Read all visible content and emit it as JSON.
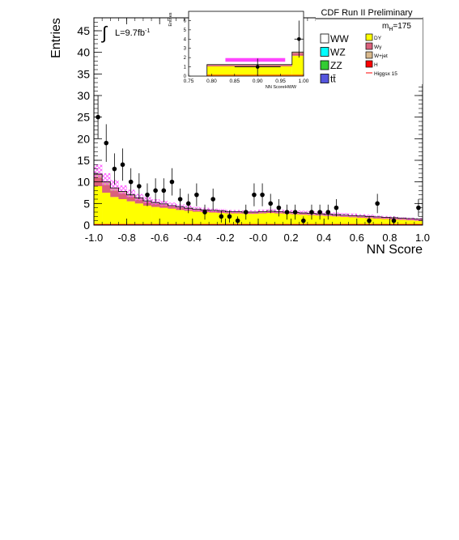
{
  "figure": {
    "experiment_label": "CDF Run II Preliminary",
    "luminosity_label": "L=9.7fb",
    "luminosity_superscript": "-1",
    "integral_symbol": "∫",
    "mass_label_prefix": "m",
    "mass_label_subscript": "H",
    "mass_label_value": "=175"
  },
  "colors": {
    "DY": "#ffff00",
    "Wgamma": "#d9617c",
    "Wjet": "#d9b98c",
    "H": "#ff0000",
    "HiggsLine": "#ff0000",
    "Higgs_band": "#ff44ff",
    "WW": "#ffffff",
    "WZ": "#00ffff",
    "ZZ": "#33cc33",
    "ttbar": "#5555dd",
    "data": "#000000"
  },
  "legend": {
    "left": [
      {
        "key": "WW",
        "label": "WW",
        "color_key": "WW"
      },
      {
        "key": "WZ",
        "label": "WZ",
        "color_key": "WZ"
      },
      {
        "key": "ZZ",
        "label": "ZZ",
        "color_key": "ZZ"
      },
      {
        "key": "ttbar",
        "label": "tt̄",
        "color_key": "ttbar"
      }
    ],
    "right": [
      {
        "key": "DY",
        "label": "DY",
        "color_key": "DY",
        "style": "box"
      },
      {
        "key": "Wgamma",
        "label": "Wγ",
        "color_key": "Wgamma",
        "style": "box"
      },
      {
        "key": "Wjet",
        "label": "W+jet",
        "color_key": "Wjet",
        "style": "box"
      },
      {
        "key": "H",
        "label": "H",
        "color_key": "H",
        "style": "box"
      },
      {
        "key": "Higgs",
        "label": "Higgsx 15",
        "color_key": "HiggsLine",
        "style": "line"
      }
    ]
  },
  "chart_data": [
    {
      "type": "bar",
      "role": "main",
      "xlabel": "NN Score",
      "ylabel": "Entries",
      "xlim": [
        -1.0,
        1.0
      ],
      "ylim": [
        0,
        48
      ],
      "xticks": [
        -1.0,
        -0.8,
        -0.6,
        -0.4,
        -0.2,
        -0.0,
        0.2,
        0.4,
        0.6,
        0.8,
        1.0
      ],
      "xtick_labels": [
        "-1.0",
        "-0.8",
        "-0.6",
        "-0.4",
        "-0.2",
        "-0.0",
        "0.2",
        "0.4",
        "0.6",
        "0.8",
        "1.0"
      ],
      "yticks": [
        0,
        5,
        10,
        15,
        20,
        25,
        30,
        35,
        40,
        45
      ],
      "ytick_labels": [
        "0",
        "5",
        "10",
        "15",
        "20",
        "25",
        "30",
        "35",
        "40",
        "45"
      ],
      "bin_edges": [
        -1.0,
        -0.95,
        -0.9,
        -0.85,
        -0.8,
        -0.75,
        -0.7,
        -0.65,
        -0.6,
        -0.55,
        -0.5,
        -0.45,
        -0.4,
        -0.35,
        -0.3,
        -0.25,
        -0.2,
        -0.15,
        -0.1,
        -0.05,
        0.0,
        0.05,
        0.1,
        0.15,
        0.2,
        0.25,
        0.3,
        0.35,
        0.4,
        0.45,
        0.5,
        0.55,
        0.6,
        0.65,
        0.7,
        0.75,
        0.8,
        0.85,
        0.9,
        0.95,
        1.0
      ],
      "series": [
        {
          "name": "DY",
          "values": [
            9.0,
            7.5,
            6.5,
            6.0,
            5.5,
            5.0,
            4.5,
            4.2,
            4.0,
            3.8,
            3.5,
            3.3,
            3.1,
            3.0,
            2.9,
            2.8,
            2.7,
            2.7,
            2.6,
            2.6,
            2.7,
            2.8,
            2.7,
            2.6,
            2.5,
            2.4,
            2.3,
            2.2,
            2.1,
            2.0,
            1.9,
            1.8,
            1.7,
            1.6,
            1.5,
            1.4,
            1.3,
            1.2,
            1.1,
            1.0
          ]
        },
        {
          "name": "Wγ",
          "values": [
            2.0,
            1.8,
            1.5,
            1.3,
            1.1,
            0.9,
            0.8,
            0.7,
            0.6,
            0.5,
            0.5,
            0.4,
            0.4,
            0.3,
            0.3,
            0.3,
            0.2,
            0.2,
            0.2,
            0.2,
            0.2,
            0.2,
            0.2,
            0.2,
            0.2,
            0.2,
            0.2,
            0.2,
            0.2,
            0.2,
            0.2,
            0.2,
            0.2,
            0.2,
            0.2,
            0.2,
            0.2,
            0.2,
            0.2,
            0.2
          ]
        },
        {
          "name": "W+jet",
          "values": [
            0.8,
            0.7,
            0.6,
            0.5,
            0.4,
            0.4,
            0.3,
            0.3,
            0.3,
            0.2,
            0.2,
            0.2,
            0.2,
            0.2,
            0.2,
            0.2,
            0.2,
            0.2,
            0.2,
            0.2,
            0.2,
            0.2,
            0.2,
            0.2,
            0.2,
            0.2,
            0.2,
            0.2,
            0.2,
            0.2,
            0.2,
            0.2,
            0.2,
            0.2,
            0.2,
            0.2,
            0.2,
            0.2,
            0.2,
            0.2
          ]
        }
      ],
      "uncertainty_band": {
        "color_key": "Higgs_band",
        "low": [
          11.0,
          9.3,
          8.0,
          7.2,
          6.4,
          5.7,
          5.1,
          4.7,
          4.4,
          4.1,
          3.8,
          3.5,
          3.3,
          3.1,
          3.0,
          2.9,
          2.8,
          2.8,
          2.7,
          2.7,
          2.8,
          2.9,
          2.8,
          2.7,
          2.6,
          2.5,
          2.4,
          2.3,
          2.2,
          2.1,
          2.0,
          1.9,
          1.8,
          1.7,
          1.6,
          1.5,
          1.4,
          1.3,
          1.2,
          1.1
        ],
        "high": [
          14.0,
          12.0,
          10.4,
          9.2,
          8.2,
          7.2,
          6.5,
          6.0,
          5.6,
          5.2,
          4.8,
          4.5,
          4.2,
          4.0,
          3.8,
          3.7,
          3.5,
          3.5,
          3.4,
          3.4,
          3.6,
          3.7,
          3.6,
          3.5,
          3.4,
          3.3,
          3.2,
          3.1,
          3.0,
          2.9,
          2.8,
          2.7,
          2.5,
          2.4,
          2.2,
          2.1,
          2.0,
          1.8,
          1.7,
          1.6
        ]
      },
      "data_points": {
        "name": "Data",
        "x": [
          -0.975,
          -0.925,
          -0.875,
          -0.825,
          -0.775,
          -0.725,
          -0.675,
          -0.625,
          -0.575,
          -0.525,
          -0.475,
          -0.425,
          -0.375,
          -0.325,
          -0.275,
          -0.225,
          -0.175,
          -0.125,
          -0.075,
          -0.025,
          0.025,
          0.075,
          0.125,
          0.175,
          0.225,
          0.275,
          0.325,
          0.375,
          0.425,
          0.475,
          0.675,
          0.725,
          0.825,
          0.975
        ],
        "y": [
          25,
          19,
          13,
          14,
          10,
          9,
          7,
          8,
          8,
          10,
          6,
          5,
          7,
          3,
          6,
          2,
          2,
          1,
          3,
          7,
          7,
          5,
          4,
          3,
          3,
          1,
          3,
          3,
          3,
          4,
          1,
          5,
          1,
          4
        ]
      }
    },
    {
      "type": "bar",
      "role": "inset",
      "xlabel": "NN ScoreHWW",
      "ylabel": "Entries",
      "xlim": [
        0.75,
        1.0
      ],
      "ylim": [
        0,
        7
      ],
      "xticks": [
        0.75,
        0.8,
        0.85,
        0.9,
        0.95,
        1.0
      ],
      "xtick_labels": [
        "0.75",
        "0.80",
        "0.85",
        "0.90",
        "0.95",
        "1.00"
      ],
      "yticks": [
        0,
        1,
        2,
        3,
        4,
        5,
        6
      ],
      "ytick_labels": [
        "0",
        "1",
        "2",
        "3",
        "4",
        "5",
        "6"
      ],
      "bin_edges": [
        0.79,
        0.975,
        1.0
      ],
      "series": [
        {
          "name": "DY",
          "values": [
            1.05,
            2.2
          ]
        },
        {
          "name": "Wγ",
          "values": [
            0.15,
            0.3
          ]
        },
        {
          "name": "W+jet",
          "values": [
            0.05,
            0.1
          ]
        }
      ],
      "uncertainty_band": {
        "x_range": [
          0.83,
          0.96
        ],
        "low": 1.55,
        "high": 1.95
      },
      "data_points": {
        "name": "Data",
        "x": [
          0.9,
          0.99
        ],
        "y": [
          1.0,
          4.0
        ],
        "xerr": [
          0.05,
          0.01
        ],
        "yerr": [
          0.9,
          2.0
        ]
      }
    }
  ]
}
